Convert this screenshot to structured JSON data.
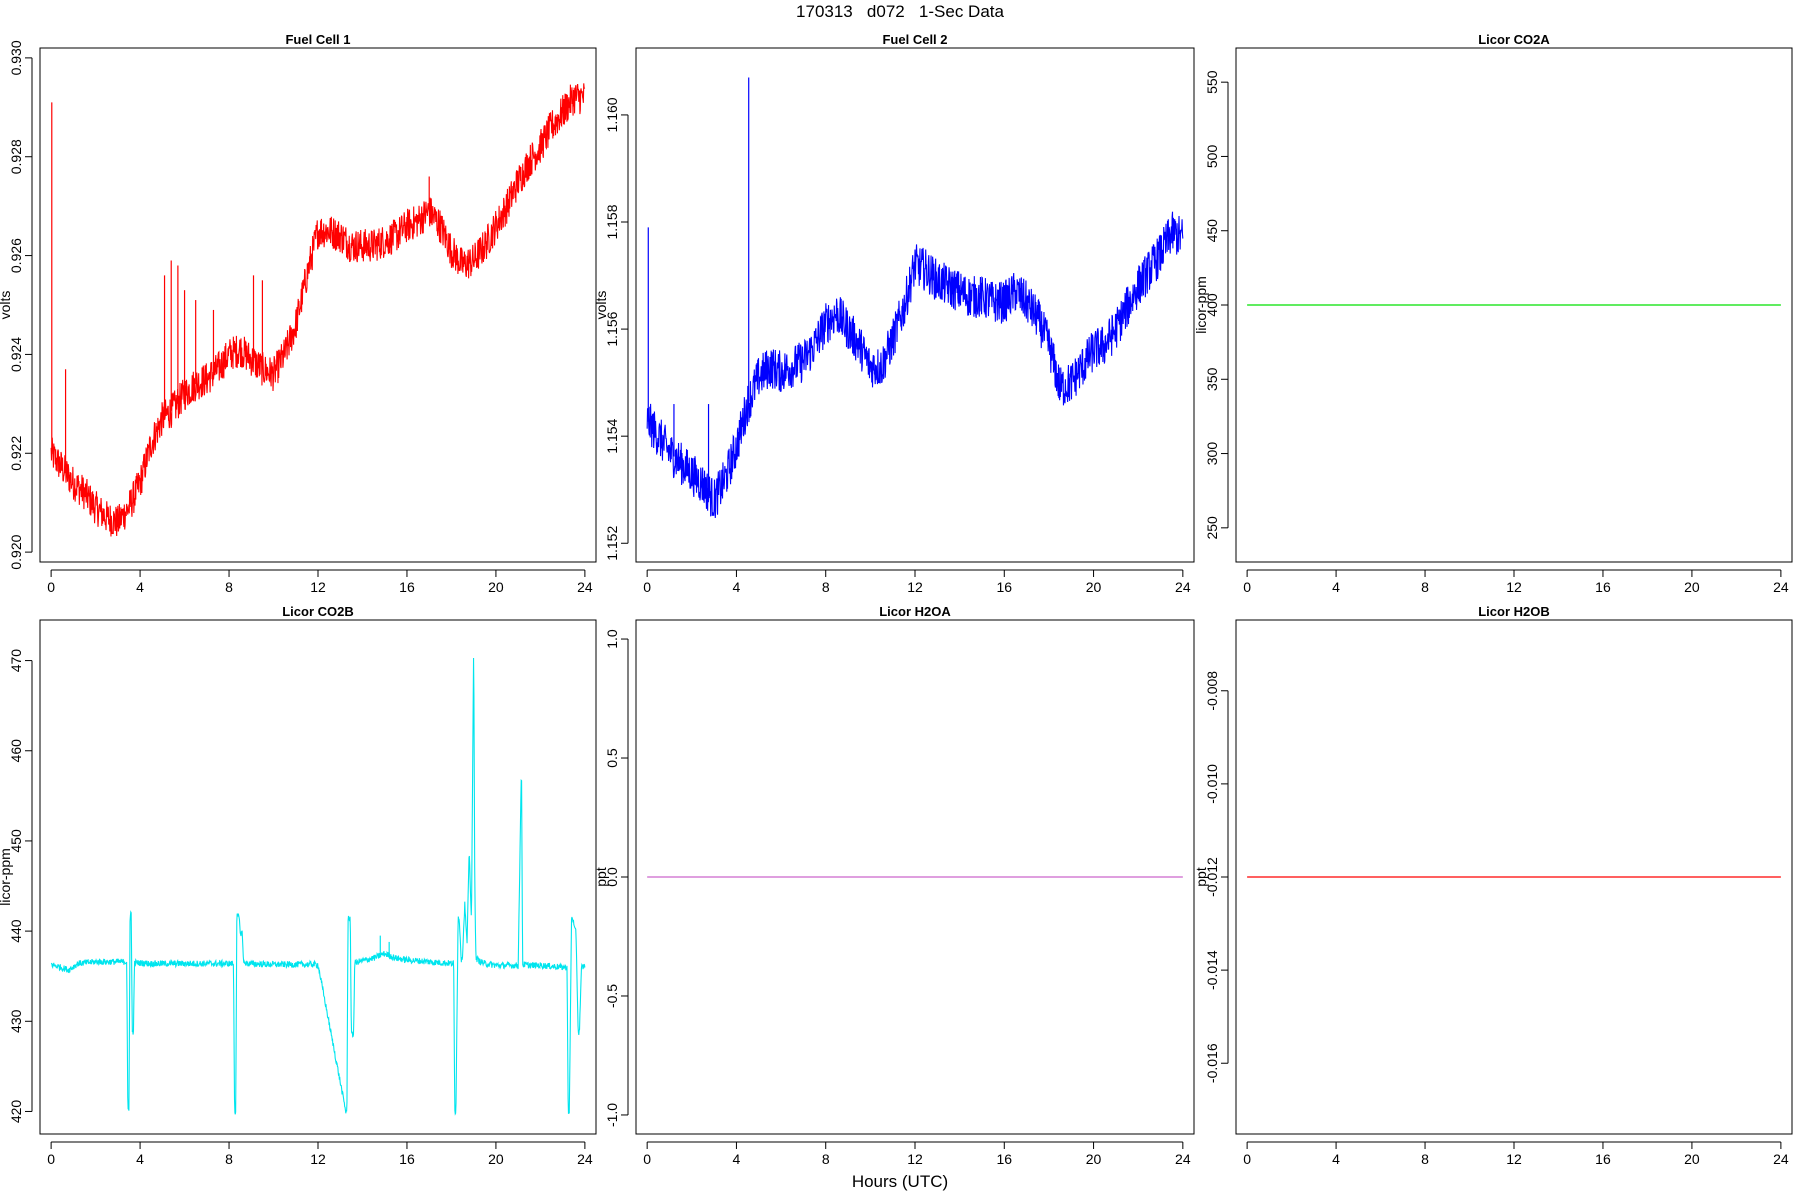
{
  "figure": {
    "title": "170313   d072   1-Sec Data",
    "xlabel": "Hours (UTC)"
  },
  "chart_data": [
    {
      "type": "line",
      "title": "Fuel Cell 1",
      "ylabel": "volts",
      "color": "#ff0000",
      "xlim": [
        -0.5,
        24.5
      ],
      "ylim": [
        0.9198,
        0.9302
      ],
      "xticks": [
        0,
        4,
        8,
        12,
        16,
        20,
        24
      ],
      "xtick_labels": [
        "0",
        "4",
        "8",
        "12",
        "16",
        "20",
        "24"
      ],
      "yticks": [
        0.92,
        0.922,
        0.924,
        0.926,
        0.928,
        0.93
      ],
      "ytick_labels": [
        "0.920",
        "0.922",
        "0.924",
        "0.926",
        "0.928",
        "0.930"
      ],
      "noise": 0.00035,
      "x": [
        0,
        0.5,
        1,
        1.5,
        2,
        2.5,
        3,
        3.5,
        4,
        4.5,
        5,
        5.5,
        6,
        6.5,
        7,
        7.5,
        8,
        8.5,
        9,
        9.5,
        10,
        10.5,
        11,
        11.5,
        12,
        12.5,
        13,
        13.5,
        14,
        14.5,
        15,
        15.5,
        16,
        16.5,
        17,
        17.5,
        18,
        18.5,
        19,
        19.5,
        20,
        20.5,
        21,
        21.5,
        22,
        22.5,
        23,
        23.5,
        24
      ],
      "y": [
        0.922,
        0.9217,
        0.9214,
        0.9212,
        0.9209,
        0.9207,
        0.9206,
        0.9209,
        0.9214,
        0.9222,
        0.9227,
        0.9229,
        0.9232,
        0.9234,
        0.9235,
        0.9237,
        0.924,
        0.9241,
        0.9239,
        0.9237,
        0.9236,
        0.924,
        0.9246,
        0.9256,
        0.9265,
        0.9265,
        0.9264,
        0.9262,
        0.9262,
        0.9262,
        0.9263,
        0.9264,
        0.9266,
        0.9267,
        0.9269,
        0.9266,
        0.9261,
        0.9258,
        0.9259,
        0.9262,
        0.9266,
        0.927,
        0.9275,
        0.9279,
        0.9282,
        0.9286,
        0.9289,
        0.9292,
        0.9292
      ],
      "spikes": [
        [
          0.03,
          0.9291
        ],
        [
          0.65,
          0.9237
        ],
        [
          5.1,
          0.9256
        ],
        [
          5.4,
          0.9259
        ],
        [
          5.7,
          0.9258
        ],
        [
          6.0,
          0.9253
        ],
        [
          6.5,
          0.9251
        ],
        [
          7.3,
          0.9249
        ],
        [
          9.1,
          0.9256
        ],
        [
          9.5,
          0.9255
        ],
        [
          17.0,
          0.9276
        ]
      ]
    },
    {
      "type": "line",
      "title": "Fuel Cell 2",
      "ylabel": "volts",
      "color": "#0000ff",
      "xlim": [
        -0.5,
        24.5
      ],
      "ylim": [
        1.15165,
        1.16125
      ],
      "xticks": [
        0,
        4,
        8,
        12,
        16,
        20,
        24
      ],
      "xtick_labels": [
        "0",
        "4",
        "8",
        "12",
        "16",
        "20",
        "24"
      ],
      "yticks": [
        1.152,
        1.154,
        1.156,
        1.158,
        1.16
      ],
      "ytick_labels": [
        "1.152",
        "1.154",
        "1.156",
        "1.158",
        "1.160"
      ],
      "noise": 0.0004,
      "x": [
        0,
        0.5,
        1,
        1.5,
        2,
        2.5,
        3,
        3.5,
        4,
        4.5,
        5,
        5.5,
        6,
        6.5,
        7,
        7.5,
        8,
        8.5,
        9,
        9.5,
        10,
        10.5,
        11,
        11.5,
        12,
        12.5,
        13,
        13.5,
        14,
        14.5,
        15,
        15.5,
        16,
        16.5,
        17,
        17.5,
        18,
        18.5,
        19,
        19.5,
        20,
        20.5,
        21,
        21.5,
        22,
        22.5,
        23,
        23.5,
        24
      ],
      "y": [
        1.1543,
        1.154,
        1.1537,
        1.1535,
        1.1533,
        1.1531,
        1.1528,
        1.1532,
        1.1538,
        1.1546,
        1.1551,
        1.1553,
        1.1552,
        1.1553,
        1.1554,
        1.1557,
        1.1561,
        1.1563,
        1.156,
        1.1557,
        1.1553,
        1.1553,
        1.1558,
        1.1564,
        1.1572,
        1.1571,
        1.1569,
        1.1568,
        1.1567,
        1.1566,
        1.1566,
        1.1565,
        1.1565,
        1.1567,
        1.1565,
        1.1562,
        1.1557,
        1.1549,
        1.155,
        1.1553,
        1.1556,
        1.1557,
        1.156,
        1.1564,
        1.1568,
        1.1571,
        1.1574,
        1.1578,
        1.1577
      ],
      "spikes": [
        [
          0.05,
          1.1579
        ],
        [
          4.55,
          1.1607
        ],
        [
          1.2,
          1.1546
        ],
        [
          2.75,
          1.1546
        ]
      ]
    },
    {
      "type": "line",
      "title": "Licor CO2A",
      "ylabel": "licor-ppm",
      "color": "#00e000",
      "xlim": [
        -0.5,
        24.5
      ],
      "ylim": [
        227,
        573
      ],
      "xticks": [
        0,
        4,
        8,
        12,
        16,
        20,
        24
      ],
      "xtick_labels": [
        "0",
        "4",
        "8",
        "12",
        "16",
        "20",
        "24"
      ],
      "yticks": [
        250,
        300,
        350,
        400,
        450,
        500,
        550
      ],
      "ytick_labels": [
        "250",
        "300",
        "350",
        "400",
        "450",
        "500",
        "550"
      ],
      "noise": 0,
      "x": [
        0,
        24
      ],
      "y": [
        400,
        400
      ],
      "spikes": []
    },
    {
      "type": "line",
      "title": "Licor CO2B",
      "ylabel": "licor-ppm",
      "color": "#00e5ee",
      "xlim": [
        -0.5,
        24.5
      ],
      "ylim": [
        417.5,
        474.5
      ],
      "xticks": [
        0,
        4,
        8,
        12,
        16,
        20,
        24
      ],
      "xtick_labels": [
        "0",
        "4",
        "8",
        "12",
        "16",
        "20",
        "24"
      ],
      "yticks": [
        420,
        430,
        440,
        450,
        460,
        470
      ],
      "ytick_labels": [
        "420",
        "430",
        "440",
        "450",
        "460",
        "470"
      ],
      "noise": 0.35,
      "x": [
        0,
        0.4,
        0.8,
        1.2,
        2,
        3,
        3.4,
        3.45,
        3.5,
        3.55,
        3.6,
        3.65,
        3.7,
        3.75,
        3.8,
        4.5,
        6,
        8.2,
        8.25,
        8.3,
        8.35,
        8.45,
        8.5,
        8.6,
        8.65,
        8.75,
        8.8,
        10,
        12,
        13.25,
        13.3,
        13.35,
        13.45,
        13.5,
        13.6,
        13.65,
        13.75,
        13.8,
        14.5,
        15,
        15.5,
        16,
        17,
        18.1,
        18.15,
        18.2,
        18.3,
        18.35,
        18.45,
        18.5,
        18.6,
        18.7,
        18.8,
        18.9,
        19.0,
        19.05,
        19.1,
        19.2,
        19.3,
        19.5,
        20,
        21,
        21.15,
        21.2,
        21.25,
        21.5,
        22,
        23,
        23.2,
        23.25,
        23.3,
        23.4,
        23.45,
        23.55,
        23.6,
        23.7,
        23.75,
        23.85,
        23.9,
        24
      ],
      "y": [
        436.3,
        436.0,
        435.7,
        436.4,
        436.6,
        436.6,
        436.6,
        420.0,
        420.0,
        442.0,
        442.0,
        428.8,
        428.8,
        436.5,
        436.5,
        436.4,
        436.4,
        436.4,
        420.0,
        420.0,
        441.6,
        441.6,
        439.8,
        439.8,
        436.5,
        436.5,
        436.4,
        436.3,
        436.3,
        420.0,
        420.0,
        441.5,
        441.5,
        428.5,
        428.5,
        436.5,
        436.5,
        436.6,
        437.0,
        437.5,
        437.0,
        436.8,
        436.6,
        436.4,
        420.0,
        420.0,
        441.5,
        441.5,
        436.5,
        437.5,
        443.0,
        438.5,
        449.0,
        441.0,
        472.2,
        445.0,
        437.0,
        436.8,
        436.6,
        436.4,
        436.2,
        436.2,
        458.8,
        436.3,
        436.3,
        436.2,
        436.2,
        436.0,
        436.0,
        419.8,
        419.8,
        441.5,
        441.5,
        440.0,
        440.0,
        428.7,
        428.7,
        436.0,
        436.0,
        436.2
      ],
      "spikes": [
        [
          14.8,
          439.5
        ],
        [
          15.2,
          438.8
        ]
      ]
    },
    {
      "type": "line",
      "title": "Licor H2OA",
      "ylabel": "ppt",
      "color": "#cc66cc",
      "xlim": [
        -0.5,
        24.5
      ],
      "ylim": [
        -1.08,
        1.08
      ],
      "xticks": [
        0,
        4,
        8,
        12,
        16,
        20,
        24
      ],
      "xtick_labels": [
        "0",
        "4",
        "8",
        "12",
        "16",
        "20",
        "24"
      ],
      "yticks": [
        -1.0,
        -0.5,
        0.0,
        0.5,
        1.0
      ],
      "ytick_labels": [
        "-1.0",
        "-0.5",
        "0.0",
        "0.5",
        "1.0"
      ],
      "noise": 0,
      "x": [
        0,
        24
      ],
      "y": [
        0,
        0
      ],
      "spikes": []
    },
    {
      "type": "line",
      "title": "Licor H2OB",
      "ylabel": "ppt",
      "color": "#ff0000",
      "xlim": [
        -0.5,
        24.5
      ],
      "ylim": [
        -0.01752,
        -0.00648
      ],
      "xticks": [
        0,
        4,
        8,
        12,
        16,
        20,
        24
      ],
      "xtick_labels": [
        "0",
        "4",
        "8",
        "12",
        "16",
        "20",
        "24"
      ],
      "yticks": [
        -0.016,
        -0.014,
        -0.012,
        -0.01,
        -0.008
      ],
      "ytick_labels": [
        "-0.016",
        "-0.014",
        "-0.012",
        "-0.010",
        "-0.008"
      ],
      "noise": 0,
      "x": [
        0,
        24
      ],
      "y": [
        -0.012,
        -0.012
      ],
      "spikes": []
    }
  ]
}
